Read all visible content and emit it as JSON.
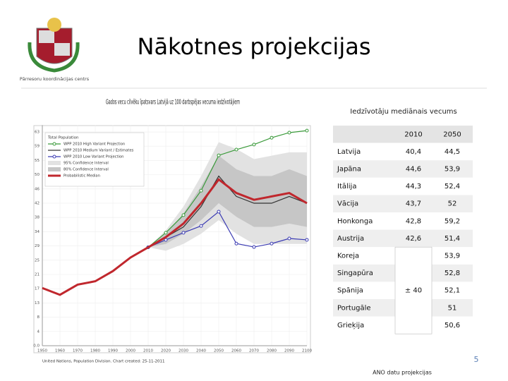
{
  "header": {
    "title": "Nākotnes projekcijas",
    "logo_text": "Pārresoru koordinācijas centrs"
  },
  "chart_data": {
    "type": "line",
    "title": "Gados vecu cilvēku īpatsvars Latvijā uz 100 darbspējas vecuma iedzīvotājiem",
    "legend_title": "Total Population",
    "x": [
      1950,
      1960,
      1970,
      1980,
      1990,
      2000,
      2010,
      2020,
      2030,
      2040,
      2050,
      2060,
      2070,
      2080,
      2090,
      2100
    ],
    "xlim": [
      1950,
      2100
    ],
    "xticks": [
      1950,
      1960,
      1970,
      1980,
      1990,
      2000,
      2010,
      2020,
      2030,
      2040,
      2050,
      2060,
      2070,
      2080,
      2090,
      2100
    ],
    "ylim": [
      0,
      65
    ],
    "yticks": [
      {
        "value": 0,
        "label": "0.0"
      },
      {
        "value": 4.2,
        "label": "4"
      },
      {
        "value": 8.4,
        "label": "8"
      },
      {
        "value": 12.6,
        "label": "13"
      },
      {
        "value": 16.8,
        "label": "17"
      },
      {
        "value": 21,
        "label": "21"
      },
      {
        "value": 25.2,
        "label": "25"
      },
      {
        "value": 29.4,
        "label": "29"
      },
      {
        "value": 33.6,
        "label": "34"
      },
      {
        "value": 37.8,
        "label": "38"
      },
      {
        "value": 42,
        "label": "42"
      },
      {
        "value": 46.2,
        "label": "46"
      },
      {
        "value": 50.4,
        "label": "50"
      },
      {
        "value": 54.6,
        "label": "55"
      },
      {
        "value": 58.8,
        "label": "59"
      },
      {
        "value": 63,
        "label": "63"
      }
    ],
    "grid": true,
    "bands": [
      {
        "name": "95% Confidence Interval",
        "color": "#e2e2e2",
        "lower": [
          null,
          null,
          null,
          null,
          null,
          null,
          29,
          28,
          30,
          33,
          37,
          33,
          30,
          30,
          30,
          30
        ],
        "upper": [
          null,
          null,
          null,
          null,
          null,
          null,
          29,
          34,
          41,
          50,
          60,
          58,
          55,
          56,
          57,
          57
        ]
      },
      {
        "name": "80% Confidence Interval",
        "color": "#c6c6c6",
        "lower": [
          null,
          null,
          null,
          null,
          null,
          null,
          29,
          30,
          33,
          37,
          42,
          38,
          35,
          35,
          36,
          35
        ],
        "upper": [
          null,
          null,
          null,
          null,
          null,
          null,
          29,
          33,
          39,
          47,
          56,
          52,
          50,
          50,
          52,
          50
        ]
      }
    ],
    "series": [
      {
        "name": "WPP 2010 High Variant Projection",
        "color": "#3a9a3a",
        "markers": true,
        "values": [
          null,
          null,
          null,
          null,
          null,
          null,
          29,
          33.3,
          38.5,
          45.7,
          56.1,
          57.8,
          59.3,
          61.3,
          62.8,
          63.4
        ]
      },
      {
        "name": "WPP 2010 Medium Variant / Estimates",
        "color": "#333333",
        "markers": false,
        "values": [
          17,
          15,
          18,
          19,
          22,
          26,
          29,
          32,
          35,
          41,
          50,
          44,
          42,
          42,
          44,
          42
        ]
      },
      {
        "name": "WPP 2010 Low Variant Projection",
        "color": "#3b3bb3",
        "markers": true,
        "values": [
          null,
          null,
          null,
          null,
          null,
          null,
          29,
          31.2,
          33.3,
          35.3,
          39.5,
          30.1,
          29.1,
          30.1,
          31.6,
          31.2
        ]
      },
      {
        "name": "Probabilistic Median",
        "color": "#c0272d",
        "markers": false,
        "width": 3,
        "values": [
          17,
          15,
          18,
          19,
          22,
          26,
          29,
          32,
          36,
          42,
          49,
          45,
          43,
          44,
          45,
          42
        ]
      }
    ],
    "source": "United Nations, Population Division. Chart created: 25-11-2011"
  },
  "table": {
    "title": "Iedzīvotāju mediānais vecums",
    "header": [
      "2010",
      "2050"
    ],
    "rows": [
      [
        "Latvija",
        "40,4",
        "44,5"
      ],
      [
        "Japāna",
        "44,6",
        "53,9"
      ],
      [
        "Itālija",
        "44,3",
        "52,4"
      ],
      [
        "Vācija",
        "43,7",
        "52"
      ],
      [
        "Honkonga",
        "42,8",
        "59,2"
      ],
      [
        "Austrija",
        "42,6",
        "51,4"
      ]
    ],
    "merged_rows": [
      [
        "Koreja",
        "53,9"
      ],
      [
        "Singapūra",
        "52,8"
      ],
      [
        "Spānija",
        "52,1"
      ],
      [
        "Portugāle",
        "51"
      ],
      [
        "Grieķija",
        "50,6"
      ]
    ],
    "merged_2010": "± 40"
  },
  "footer": {
    "source": "ANO datu projekcijas",
    "page": "5"
  }
}
